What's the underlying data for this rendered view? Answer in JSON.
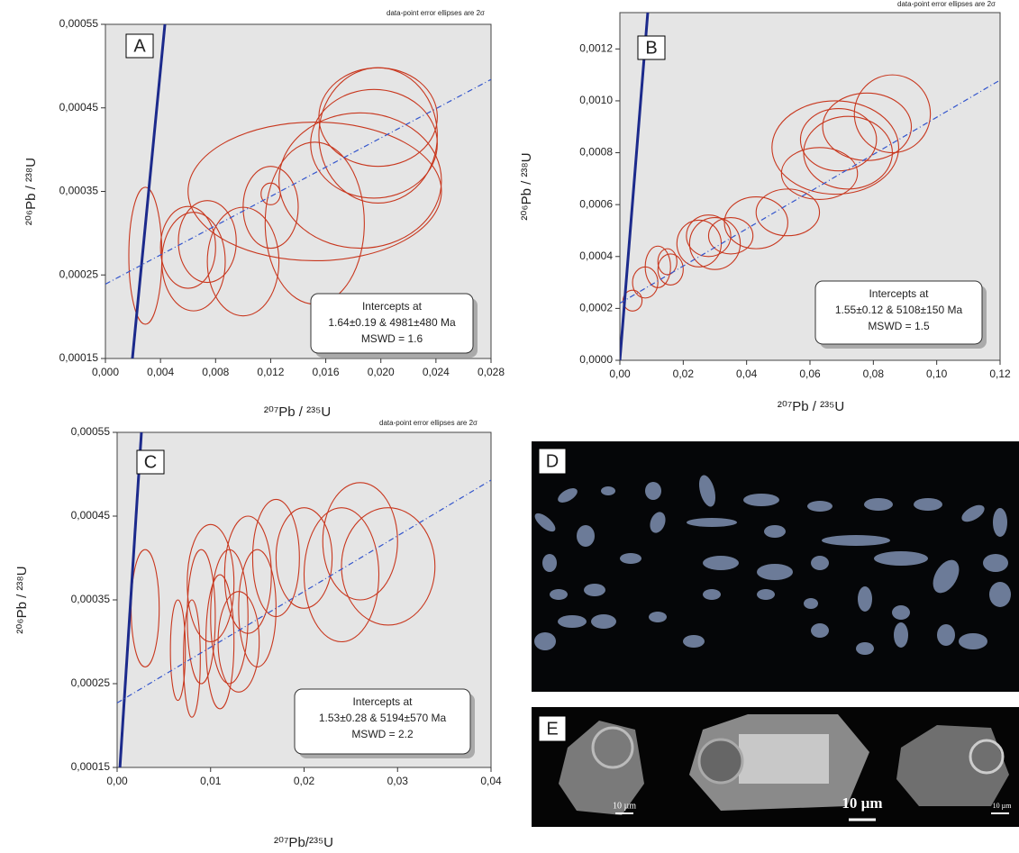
{
  "chart_data": [
    {
      "type": "scatter",
      "panel": "A",
      "note": "data-point error ellipses are 2σ",
      "xlabel": "²⁰⁷Pb / ²³⁵U",
      "ylabel": "²⁰⁶Pb / ²³⁸U",
      "xlim": [
        0,
        0.028
      ],
      "ylim": [
        0.00015,
        0.00055
      ],
      "xticks": [
        {
          "value": 0,
          "label": "0,000"
        },
        {
          "value": 0.004,
          "label": "0,004"
        },
        {
          "value": 0.008,
          "label": "0,008"
        },
        {
          "value": 0.012,
          "label": "0,012"
        },
        {
          "value": 0.016,
          "label": "0,016"
        },
        {
          "value": 0.02,
          "label": "0,020"
        },
        {
          "value": 0.024,
          "label": "0,024"
        },
        {
          "value": 0.028,
          "label": "0,028"
        }
      ],
      "yticks": [
        {
          "value": 0.00015,
          "label": "0,00015"
        },
        {
          "value": 0.00025,
          "label": "0,00025"
        },
        {
          "value": 0.00035,
          "label": "0,00035"
        },
        {
          "value": 0.00045,
          "label": "0,00045"
        },
        {
          "value": 0.00055,
          "label": "0,00055"
        }
      ],
      "ellipse_color": "#c8371e",
      "ellipses": [
        {
          "x": 0.0029,
          "y": 0.000273,
          "rx": 0.0012,
          "ry": 8.2e-05
        },
        {
          "x": 0.0064,
          "y": 0.000266,
          "rx": 0.0023,
          "ry": 5.9e-05
        },
        {
          "x": 0.006,
          "y": 0.000283,
          "rx": 0.002,
          "ry": 4.9e-05
        },
        {
          "x": 0.0074,
          "y": 0.00029,
          "rx": 0.0021,
          "ry": 4.9e-05
        },
        {
          "x": 0.01,
          "y": 0.000266,
          "rx": 0.0026,
          "ry": 6.5e-05
        },
        {
          "x": 0.012,
          "y": 0.000331,
          "rx": 0.002,
          "ry": 4.9e-05
        },
        {
          "x": 0.012,
          "y": 0.000347,
          "rx": 0.0007,
          "ry": 1.3e-05
        },
        {
          "x": 0.0152,
          "y": 0.000312,
          "rx": 0.0036,
          "ry": 9.7e-05
        },
        {
          "x": 0.0152,
          "y": 0.00035,
          "rx": 0.0092,
          "ry": 8.3e-05
        },
        {
          "x": 0.0185,
          "y": 0.000363,
          "rx": 0.0059,
          "ry": 8.1e-05
        },
        {
          "x": 0.0195,
          "y": 0.000407,
          "rx": 0.0046,
          "ry": 6.5e-05
        },
        {
          "x": 0.0198,
          "y": 0.000417,
          "rx": 0.0043,
          "ry": 8.1e-05
        },
        {
          "x": 0.0198,
          "y": 0.000439,
          "rx": 0.0043,
          "ry": 5.9e-05
        }
      ],
      "lines": [
        {
          "x": [
            0.00196,
            0.00432
          ],
          "y": [
            0.00015,
            0.00055
          ],
          "color": "#1c2a8c",
          "style": "solid"
        },
        {
          "x": [
            0,
            0.028
          ],
          "y": [
            0.000239,
            0.000484
          ],
          "color": "#3355cc",
          "style": "dashed"
        }
      ],
      "annotation": [
        "Intercepts at",
        "1.64±0.19 & 4981±480 Ma",
        "MSWD = 1.6"
      ]
    },
    {
      "type": "scatter",
      "panel": "B",
      "note": "data-point error ellipses are 2σ",
      "xlabel": "²⁰⁷Pb / ²³⁵U",
      "ylabel": "²⁰⁶Pb / ²³⁸U",
      "xlim": [
        0,
        0.12
      ],
      "ylim": [
        0,
        0.00134
      ],
      "xticks": [
        {
          "value": 0,
          "label": "0,00"
        },
        {
          "value": 0.02,
          "label": "0,02"
        },
        {
          "value": 0.04,
          "label": "0,04"
        },
        {
          "value": 0.06,
          "label": "0,06"
        },
        {
          "value": 0.08,
          "label": "0,08"
        },
        {
          "value": 0.1,
          "label": "0,10"
        },
        {
          "value": 0.12,
          "label": "0,12"
        }
      ],
      "yticks": [
        {
          "value": 0,
          "label": "0,0000"
        },
        {
          "value": 0.0002,
          "label": "0,0002"
        },
        {
          "value": 0.0004,
          "label": "0,0004"
        },
        {
          "value": 0.0006,
          "label": "0,0006"
        },
        {
          "value": 0.0008,
          "label": "0,0008"
        },
        {
          "value": 0.001,
          "label": "0,0010"
        },
        {
          "value": 0.0012,
          "label": "0,0012"
        }
      ],
      "ellipse_color": "#c8371e",
      "ellipses": [
        {
          "x": 0.004,
          "y": 0.00023,
          "rx": 0.003,
          "ry": 4e-05
        },
        {
          "x": 0.008,
          "y": 0.0003,
          "rx": 0.004,
          "ry": 6e-05
        },
        {
          "x": 0.012,
          "y": 0.00036,
          "rx": 0.004,
          "ry": 8e-05
        },
        {
          "x": 0.016,
          "y": 0.00035,
          "rx": 0.004,
          "ry": 6e-05
        },
        {
          "x": 0.015,
          "y": 0.00038,
          "rx": 0.003,
          "ry": 5e-05
        },
        {
          "x": 0.025,
          "y": 0.00045,
          "rx": 0.007,
          "ry": 9e-05
        },
        {
          "x": 0.03,
          "y": 0.00045,
          "rx": 0.008,
          "ry": 0.0001
        },
        {
          "x": 0.028,
          "y": 0.00048,
          "rx": 0.007,
          "ry": 8e-05
        },
        {
          "x": 0.035,
          "y": 0.00048,
          "rx": 0.007,
          "ry": 7e-05
        },
        {
          "x": 0.043,
          "y": 0.00053,
          "rx": 0.01,
          "ry": 0.0001
        },
        {
          "x": 0.053,
          "y": 0.00057,
          "rx": 0.01,
          "ry": 9e-05
        },
        {
          "x": 0.063,
          "y": 0.00072,
          "rx": 0.012,
          "ry": 0.0001
        },
        {
          "x": 0.068,
          "y": 0.00082,
          "rx": 0.02,
          "ry": 0.00018
        },
        {
          "x": 0.069,
          "y": 0.00085,
          "rx": 0.012,
          "ry": 0.00012
        },
        {
          "x": 0.072,
          "y": 0.0008,
          "rx": 0.014,
          "ry": 0.00014
        },
        {
          "x": 0.078,
          "y": 0.0009,
          "rx": 0.014,
          "ry": 0.00013
        },
        {
          "x": 0.086,
          "y": 0.00095,
          "rx": 0.012,
          "ry": 0.00015
        }
      ],
      "lines": [
        {
          "x": [
            0,
            0.0088
          ],
          "y": [
            0,
            0.00134
          ],
          "color": "#1c2a8c",
          "style": "solid"
        },
        {
          "x": [
            0,
            0.12
          ],
          "y": [
            0.00022,
            0.00108
          ],
          "color": "#3355cc",
          "style": "dashed"
        }
      ],
      "annotation": [
        "Intercepts at",
        "1.55±0.12 & 5108±150 Ma",
        "MSWD = 1.5"
      ]
    },
    {
      "type": "scatter",
      "panel": "C",
      "note": "data-point error ellipses are 2σ",
      "xlabel": "²⁰⁷Pb/²³⁵U",
      "ylabel": "²⁰⁶Pb / ²³⁸U",
      "xlim": [
        0,
        0.04
      ],
      "ylim": [
        0.00015,
        0.00055
      ],
      "xticks": [
        {
          "value": 0,
          "label": "0,00"
        },
        {
          "value": 0.01,
          "label": "0,01"
        },
        {
          "value": 0.02,
          "label": "0,02"
        },
        {
          "value": 0.03,
          "label": "0,03"
        },
        {
          "value": 0.04,
          "label": "0,04"
        }
      ],
      "yticks": [
        {
          "value": 0.00015,
          "label": "0,00015"
        },
        {
          "value": 0.00025,
          "label": "0,00025"
        },
        {
          "value": 0.00035,
          "label": "0,00035"
        },
        {
          "value": 0.00045,
          "label": "0,00045"
        },
        {
          "value": 0.00055,
          "label": "0,00055"
        }
      ],
      "ellipse_color": "#c8371e",
      "ellipses": [
        {
          "x": 0.003,
          "y": 0.00034,
          "rx": 0.0015,
          "ry": 7e-05
        },
        {
          "x": 0.0065,
          "y": 0.00029,
          "rx": 0.0008,
          "ry": 6e-05
        },
        {
          "x": 0.008,
          "y": 0.00028,
          "rx": 0.0009,
          "ry": 7e-05
        },
        {
          "x": 0.009,
          "y": 0.00033,
          "rx": 0.0015,
          "ry": 8e-05
        },
        {
          "x": 0.01,
          "y": 0.00037,
          "rx": 0.0025,
          "ry": 7e-05
        },
        {
          "x": 0.011,
          "y": 0.0003,
          "rx": 0.0015,
          "ry": 8e-05
        },
        {
          "x": 0.012,
          "y": 0.00033,
          "rx": 0.002,
          "ry": 8e-05
        },
        {
          "x": 0.013,
          "y": 0.0003,
          "rx": 0.0022,
          "ry": 6e-05
        },
        {
          "x": 0.014,
          "y": 0.00038,
          "rx": 0.0025,
          "ry": 7e-05
        },
        {
          "x": 0.015,
          "y": 0.00034,
          "rx": 0.002,
          "ry": 7e-05
        },
        {
          "x": 0.017,
          "y": 0.0004,
          "rx": 0.0025,
          "ry": 7e-05
        },
        {
          "x": 0.02,
          "y": 0.0004,
          "rx": 0.003,
          "ry": 6e-05
        },
        {
          "x": 0.024,
          "y": 0.00038,
          "rx": 0.004,
          "ry": 8e-05
        },
        {
          "x": 0.026,
          "y": 0.00042,
          "rx": 0.004,
          "ry": 7e-05
        },
        {
          "x": 0.029,
          "y": 0.00039,
          "rx": 0.005,
          "ry": 7e-05
        }
      ],
      "lines": [
        {
          "x": [
            0.0003,
            0.0026
          ],
          "y": [
            0.00015,
            0.00055
          ],
          "color": "#1c2a8c",
          "style": "solid"
        },
        {
          "x": [
            0,
            0.04
          ],
          "y": [
            0.000227,
            0.000493
          ],
          "color": "#3355cc",
          "style": "dashed"
        }
      ],
      "annotation": [
        "Intercepts at",
        "1.53±0.28 & 5194±570 Ma",
        "MSWD = 2.2"
      ]
    }
  ],
  "images": [
    {
      "panel": "D"
    },
    {
      "panel": "E",
      "scale_labels": [
        "10 µm",
        "10 µm",
        "10 µm"
      ]
    }
  ]
}
